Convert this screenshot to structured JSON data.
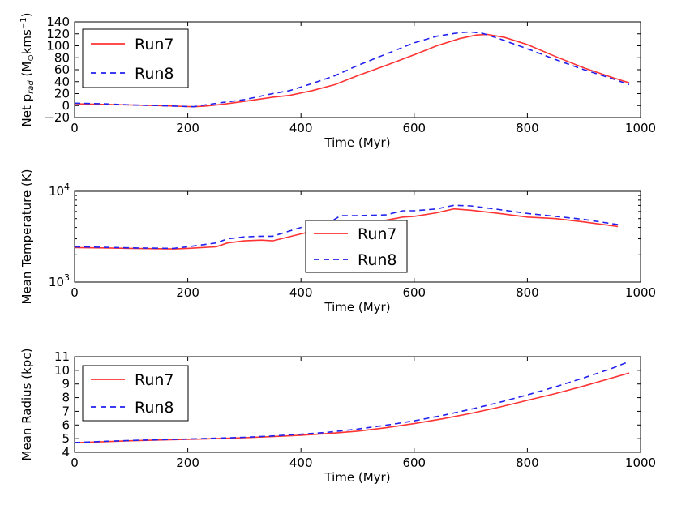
{
  "chart_data": [
    {
      "type": "line",
      "xlabel": "Time (Myr)",
      "ylabel": "Net p",
      "ylabel_sub": "rad",
      "ylabel_unit_pre": " (M",
      "ylabel_unit_mid": "kms",
      "ylabel_unit_sup": "−1",
      "ylabel_unit_post": ")",
      "xlim": [
        0,
        1000
      ],
      "ylim": [
        -20,
        140
      ],
      "yscale": "linear",
      "xticks": [
        0,
        200,
        400,
        600,
        800,
        1000
      ],
      "xtick_labels": [
        "0",
        "200",
        "400",
        "600",
        "800",
        "1000"
      ],
      "yticks": [
        -20,
        0,
        20,
        40,
        60,
        80,
        100,
        120,
        140
      ],
      "ytick_labels": [
        "−20",
        "0",
        "20",
        "40",
        "60",
        "80",
        "100",
        "120",
        "140"
      ],
      "legend_position": "top-left",
      "series": [
        {
          "name": "Run7",
          "color": "#ff3333",
          "style": "solid",
          "x": [
            0,
            50,
            100,
            150,
            180,
            210,
            230,
            260,
            300,
            350,
            380,
            420,
            460,
            500,
            550,
            600,
            640,
            680,
            710,
            730,
            760,
            800,
            850,
            900,
            950,
            980
          ],
          "y": [
            3,
            2,
            1,
            0,
            -1,
            -2,
            -1,
            2,
            7,
            14,
            17,
            25,
            35,
            50,
            67,
            85,
            100,
            112,
            118,
            119,
            114,
            102,
            82,
            63,
            47,
            38
          ]
        },
        {
          "name": "Run8",
          "color": "#2222ee",
          "style": "dashed",
          "x": [
            0,
            50,
            100,
            150,
            180,
            210,
            230,
            260,
            300,
            350,
            380,
            420,
            460,
            500,
            550,
            600,
            640,
            680,
            700,
            720,
            750,
            800,
            850,
            900,
            950,
            980
          ],
          "y": [
            4,
            3,
            1,
            0,
            -1,
            -2,
            1,
            5,
            10,
            20,
            25,
            37,
            50,
            67,
            86,
            105,
            116,
            122,
            123,
            121,
            112,
            95,
            77,
            60,
            45,
            35
          ]
        }
      ]
    },
    {
      "type": "line",
      "xlabel": "Time (Myr)",
      "ylabel": "Mean Temperature (K)",
      "xlim": [
        0,
        1000
      ],
      "ylim": [
        1000,
        10000
      ],
      "yscale": "log",
      "xticks": [
        0,
        200,
        400,
        600,
        800,
        1000
      ],
      "xtick_labels": [
        "0",
        "200",
        "400",
        "600",
        "800",
        "1000"
      ],
      "yticks": [
        1000,
        10000
      ],
      "ytick_base": "10",
      "ytick_exponents": [
        "3",
        "4"
      ],
      "legend_position": "center",
      "series": [
        {
          "name": "Run7",
          "color": "#ff3333",
          "style": "solid",
          "x": [
            0,
            50,
            100,
            175,
            200,
            250,
            270,
            300,
            330,
            350,
            400,
            450,
            470,
            500,
            550,
            580,
            600,
            640,
            670,
            700,
            750,
            800,
            850,
            900,
            960
          ],
          "y": [
            2400,
            2380,
            2350,
            2320,
            2350,
            2450,
            2700,
            2850,
            2900,
            2850,
            3400,
            4000,
            4600,
            4700,
            4800,
            5200,
            5300,
            5800,
            6400,
            6200,
            5700,
            5200,
            5000,
            4600,
            4100
          ]
        },
        {
          "name": "Run8",
          "color": "#2222ee",
          "style": "dashed",
          "x": [
            0,
            50,
            100,
            175,
            200,
            250,
            270,
            300,
            330,
            350,
            400,
            450,
            470,
            500,
            550,
            580,
            600,
            640,
            670,
            700,
            750,
            800,
            850,
            900,
            960
          ],
          "y": [
            2450,
            2420,
            2380,
            2350,
            2450,
            2700,
            3000,
            3150,
            3200,
            3200,
            4000,
            4500,
            5400,
            5400,
            5500,
            6100,
            6100,
            6400,
            7000,
            6900,
            6300,
            5700,
            5300,
            4900,
            4300
          ]
        }
      ]
    },
    {
      "type": "line",
      "xlabel": "Time (Myr)",
      "ylabel": "Mean Radius (kpc)",
      "xlim": [
        0,
        1000
      ],
      "ylim": [
        4,
        11
      ],
      "yscale": "linear",
      "xticks": [
        0,
        200,
        400,
        600,
        800,
        1000
      ],
      "xtick_labels": [
        "0",
        "200",
        "400",
        "600",
        "800",
        "1000"
      ],
      "yticks": [
        4,
        5,
        6,
        7,
        8,
        9,
        10,
        11
      ],
      "ytick_labels": [
        "4",
        "5",
        "6",
        "7",
        "8",
        "9",
        "10",
        "11"
      ],
      "legend_position": "top-left",
      "series": [
        {
          "name": "Run7",
          "color": "#ff3333",
          "style": "solid",
          "x": [
            0,
            50,
            100,
            150,
            200,
            250,
            300,
            350,
            400,
            450,
            500,
            550,
            600,
            650,
            700,
            750,
            800,
            850,
            900,
            950,
            980
          ],
          "y": [
            4.7,
            4.78,
            4.85,
            4.9,
            4.95,
            5.0,
            5.07,
            5.15,
            5.25,
            5.38,
            5.55,
            5.8,
            6.1,
            6.45,
            6.85,
            7.3,
            7.8,
            8.3,
            8.85,
            9.45,
            9.8
          ]
        },
        {
          "name": "Run8",
          "color": "#2222ee",
          "style": "dashed",
          "x": [
            0,
            50,
            100,
            150,
            200,
            250,
            300,
            350,
            400,
            450,
            500,
            550,
            600,
            650,
            700,
            750,
            800,
            850,
            900,
            950,
            980
          ],
          "y": [
            4.72,
            4.8,
            4.87,
            4.92,
            4.97,
            5.03,
            5.1,
            5.2,
            5.32,
            5.48,
            5.7,
            5.98,
            6.3,
            6.7,
            7.15,
            7.65,
            8.2,
            8.8,
            9.45,
            10.15,
            10.65
          ]
        }
      ]
    }
  ]
}
